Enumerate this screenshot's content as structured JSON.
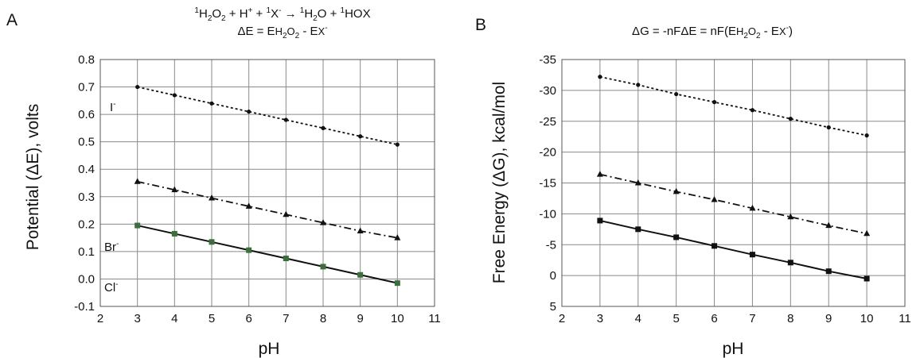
{
  "chart_data": [
    {
      "type": "line",
      "panel_label": "A",
      "title_parts": {
        "eq_pre": "1",
        "eq_h2": "H",
        "eq_s2": "2",
        "eq_o": "O",
        "eq_s2b": "2",
        "eq_mid": " + H",
        "eq_plus": "+",
        "eq_mid2": " + ",
        "eq_s1": "1",
        "eq_x": "X",
        "eq_minus": "-",
        "eq_arrow": " → ",
        "eq_s1b": "1",
        "eq_h2o": "H",
        "eq_s2c": "2",
        "eq_o2": "O + ",
        "eq_s1c": "1",
        "eq_hox": "HOX"
      },
      "subtitle_parts": {
        "d": "ΔE = E",
        "h": "H",
        "s2": "2",
        "o": "O",
        "s2b": "2",
        "mid": " - E",
        "x": "X",
        "minus": "-"
      },
      "xlabel": "pH",
      "ylabel": "Potential (ΔE), volts",
      "xlim": [
        2,
        11
      ],
      "ylim": [
        -0.1,
        0.8
      ],
      "xticks": [
        "2",
        "3",
        "4",
        "5",
        "6",
        "7",
        "8",
        "9",
        "10",
        "11"
      ],
      "yticks": [
        "-0.1",
        "0.0",
        "0.1",
        "0.2",
        "0.3",
        "0.4",
        "0.5",
        "0.6",
        "0.7",
        "0.8"
      ],
      "grid": true,
      "x": [
        3,
        4,
        5,
        6,
        7,
        8,
        9,
        10
      ],
      "series": [
        {
          "name": "I",
          "name_sup": "-",
          "marker": "circle",
          "dash": "dotted",
          "values": [
            0.7,
            0.67,
            0.64,
            0.61,
            0.58,
            0.55,
            0.52,
            0.49
          ]
        },
        {
          "name": "Br",
          "name_sup": "-",
          "marker": "triangle",
          "dash": "dashdot",
          "values": [
            0.355,
            0.325,
            0.295,
            0.265,
            0.235,
            0.205,
            0.175,
            0.15
          ]
        },
        {
          "name": "Cl",
          "name_sup": "-",
          "marker": "square",
          "dash": "solid",
          "values": [
            0.195,
            0.165,
            0.135,
            0.105,
            0.075,
            0.045,
            0.015,
            -0.015
          ]
        }
      ]
    },
    {
      "type": "line",
      "panel_label": "B",
      "title_parts": {
        "a": "ΔG = -nFΔE = nF(E",
        "h": "H",
        "s2": "2",
        "o": "O",
        "s2b": "2",
        "mid": " - E",
        "x": "X",
        "minus": "-",
        "end": ")"
      },
      "xlabel": "pH",
      "ylabel": "Free Energy (ΔG), kcal/mol",
      "xlim": [
        2,
        11
      ],
      "ylim": [
        5,
        -35
      ],
      "xticks": [
        "2",
        "3",
        "4",
        "5",
        "6",
        "7",
        "8",
        "9",
        "10",
        "11"
      ],
      "yticks": [
        "5",
        "0",
        "-5",
        "-10",
        "-15",
        "-20",
        "-25",
        "-30",
        "-35"
      ],
      "grid": true,
      "x": [
        3,
        4,
        5,
        6,
        7,
        8,
        9,
        10
      ],
      "series": [
        {
          "marker": "circle",
          "dash": "dotted",
          "values": [
            -32.2,
            -30.9,
            -29.4,
            -28.1,
            -26.8,
            -25.4,
            -24.0,
            -22.7
          ]
        },
        {
          "marker": "triangle",
          "dash": "dashdot",
          "values": [
            -16.4,
            -15.0,
            -13.6,
            -12.3,
            -10.9,
            -9.5,
            -8.1,
            -6.8
          ]
        },
        {
          "marker": "square",
          "dash": "solid",
          "values": [
            -8.9,
            -7.5,
            -6.2,
            -4.8,
            -3.4,
            -2.1,
            -0.7,
            0.5
          ]
        }
      ]
    }
  ]
}
